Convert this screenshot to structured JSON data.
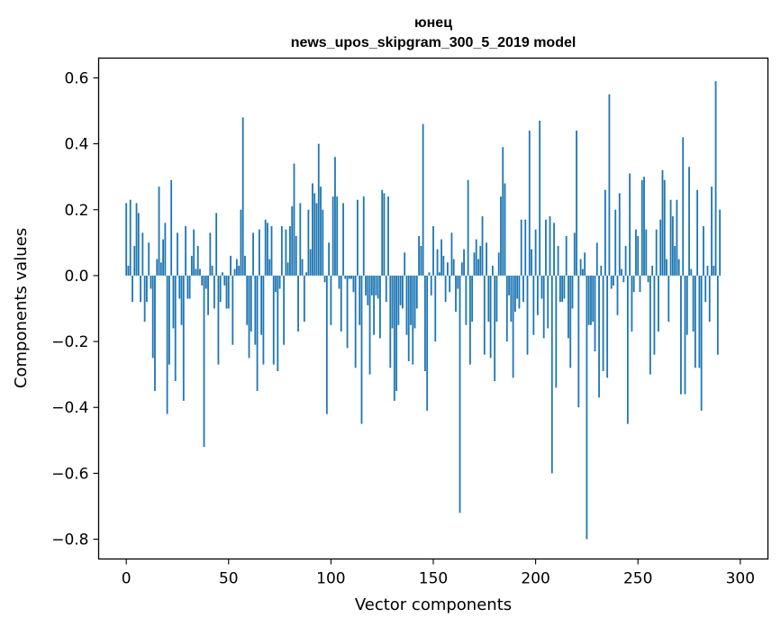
{
  "chart_data": {
    "type": "bar",
    "title": "юнец",
    "subtitle": "news_upos_skipgram_300_5_2019 model",
    "xlabel": "Vector components",
    "ylabel": "Components values",
    "xlim": [
      -13.5,
      313.5
    ],
    "ylim": [
      -0.86,
      0.66
    ],
    "xticks": [
      0,
      50,
      100,
      150,
      200,
      250,
      300
    ],
    "yticks": [
      -0.8,
      -0.6,
      -0.4,
      -0.2,
      0.0,
      0.2,
      0.4,
      0.6
    ],
    "ytick_labels": [
      "−0.8",
      "−0.6",
      "−0.4",
      "−0.2",
      "0.0",
      "0.2",
      "0.4",
      "0.6"
    ],
    "bar_color": "#1f77b4",
    "values": [
      0.22,
      0.03,
      0.23,
      -0.08,
      0.09,
      0.22,
      0.19,
      -0.08,
      0.13,
      -0.14,
      -0.08,
      0.1,
      -0.04,
      -0.25,
      -0.35,
      0.05,
      0.27,
      0.04,
      0.11,
      0.16,
      -0.42,
      -0.27,
      0.29,
      -0.16,
      -0.32,
      0.13,
      -0.07,
      -0.15,
      -0.38,
      0.15,
      -0.07,
      -0.07,
      0.06,
      0.14,
      0.02,
      0.09,
      0.02,
      -0.03,
      -0.52,
      -0.04,
      -0.12,
      0.13,
      0.03,
      -0.1,
      0.19,
      -0.27,
      -0.08,
      0.01,
      -0.03,
      -0.1,
      -0.1,
      0.06,
      -0.21,
      0.02,
      0.05,
      0.03,
      0.2,
      0.48,
      0.06,
      -0.15,
      -0.25,
      -0.17,
      0.13,
      -0.21,
      -0.35,
      0.14,
      -0.18,
      -0.27,
      0.17,
      0.16,
      0.05,
      0.15,
      -0.27,
      -0.05,
      -0.29,
      -0.04,
      0.15,
      -0.21,
      0.14,
      0.04,
      0.15,
      0.21,
      0.34,
      0.12,
      -0.17,
      0.22,
      0.05,
      -0.14,
      0.01,
      0.2,
      0.08,
      0.28,
      0.25,
      0.22,
      0.4,
      0.27,
      0.2,
      -0.02,
      -0.42,
      0.1,
      -0.15,
      0.24,
      0.36,
      0.24,
      -0.04,
      -0.17,
      0.22,
      -0.01,
      -0.22,
      -0.01,
      -0.01,
      -0.05,
      -0.28,
      0.23,
      -0.15,
      -0.45,
      0.24,
      -0.06,
      -0.09,
      -0.3,
      -0.06,
      -0.18,
      -0.06,
      -0.07,
      -0.19,
      0.26,
      0.25,
      -0.08,
      0.24,
      -0.28,
      -0.16,
      -0.38,
      -0.35,
      -0.15,
      -0.09,
      -0.1,
      0.07,
      -0.18,
      -0.26,
      -0.15,
      -0.27,
      -0.16,
      -0.1,
      0.12,
      0.09,
      0.46,
      -0.29,
      -0.41,
      0.01,
      -0.06,
      0.15,
      -0.2,
      0.08,
      0.01,
      0.11,
      0.06,
      -0.08,
      0.04,
      -0.05,
      0.13,
      0.05,
      -0.11,
      -0.04,
      -0.72,
      0.04,
      0.08,
      -0.15,
      0.29,
      -0.27,
      -0.14,
      0.07,
      0.11,
      0.05,
      0.09,
      0.18,
      -0.24,
      0.1,
      -0.14,
      -0.25,
      0.03,
      -0.32,
      -0.14,
      0.07,
      0.24,
      0.39,
      0.28,
      -0.2,
      -0.06,
      -0.14,
      -0.31,
      -0.11,
      -0.07,
      -0.1,
      0.17,
      -0.08,
      0.17,
      -0.24,
      0.44,
      0.08,
      -0.18,
      0.14,
      -0.12,
      0.47,
      -0.07,
      -0.19,
      0.17,
      -0.16,
      0.18,
      -0.6,
      0.16,
      -0.34,
      0.09,
      -0.08,
      -0.08,
      -0.07,
      0.12,
      -0.19,
      -0.28,
      -0.1,
      0.13,
      0.44,
      -0.4,
      0.05,
      0.02,
      0.07,
      -0.8,
      -0.15,
      -0.15,
      -0.14,
      -0.23,
      0.1,
      -0.37,
      0.03,
      -0.29,
      0.26,
      -0.31,
      0.55,
      -0.04,
      -0.03,
      0.2,
      -0.12,
      0.25,
      0.02,
      -0.02,
      0.09,
      -0.45,
      0.31,
      -0.17,
      -0.05,
      0.14,
      0.12,
      -0.05,
      0.29,
      0.3,
      0.14,
      -0.02,
      -0.3,
      0.03,
      -0.24,
      0.14,
      -0.17,
      0.17,
      0.32,
      0.29,
      0.05,
      -0.14,
      0.23,
      0.18,
      0.09,
      0.23,
      0.05,
      -0.36,
      0.42,
      -0.36,
      -0.18,
      0.33,
      0.02,
      -0.17,
      -0.28,
      0.26,
      -0.28,
      -0.41,
      0.15,
      -0.08,
      0.03,
      -0.14,
      0.27,
      0.03,
      0.59,
      -0.24,
      0.2
    ]
  }
}
